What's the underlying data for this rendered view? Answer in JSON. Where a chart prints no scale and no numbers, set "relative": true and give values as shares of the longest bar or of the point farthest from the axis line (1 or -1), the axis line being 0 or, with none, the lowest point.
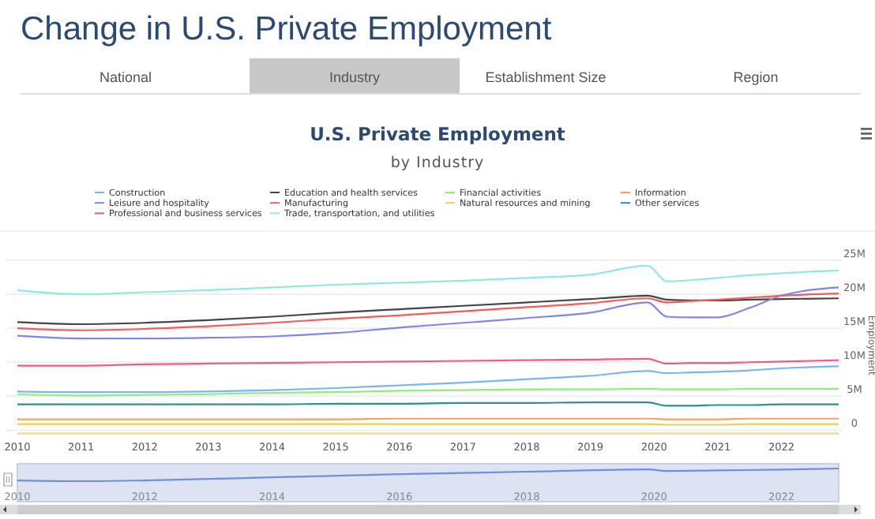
{
  "chart_data": [
    {
      "type": "other",
      "title": "Change in U.S. Private Employment",
      "annotations": [
        "National",
        "Industry",
        "Establishment Size",
        "Region"
      ]
    },
    {
      "type": "line",
      "title": "U.S. Private Employment",
      "subtitle": "by Industry",
      "ylabel": "Employment",
      "legend": "top",
      "grid": "y",
      "xlim": [
        2010,
        2022.9
      ],
      "xticks": [
        2010,
        2011,
        2012,
        2013,
        2014,
        2015,
        2016,
        2017,
        2018,
        2019,
        2020,
        2021,
        2022
      ],
      "ylim": [
        0,
        25000000
      ],
      "yticks": [
        {
          "value": 0,
          "label": "0"
        },
        {
          "value": 5000000,
          "label": "5M"
        },
        {
          "value": 10000000,
          "label": "10M"
        },
        {
          "value": 15000000,
          "label": "15M"
        },
        {
          "value": 20000000,
          "label": "20M"
        },
        {
          "value": 25000000,
          "label": "25M"
        }
      ],
      "x": [
        2010,
        2011,
        2012,
        2013,
        2014,
        2015,
        2016,
        2017,
        2018,
        2019,
        2019.9,
        2020.2,
        2020.6,
        2021,
        2021.5,
        2022,
        2022.9
      ],
      "series": [
        {
          "name": "Construction",
          "color": "#7cb5ec",
          "values": [
            5700000,
            5600000,
            5600000,
            5700000,
            5900000,
            6200000,
            6600000,
            7000000,
            7500000,
            8000000,
            8700000,
            8400000,
            8500000,
            8600000,
            8800000,
            9100000,
            9400000
          ]
        },
        {
          "name": "Education and health services",
          "color": "#434348",
          "values": [
            15900000,
            15600000,
            15800000,
            16200000,
            16700000,
            17300000,
            17800000,
            18300000,
            18800000,
            19300000,
            19800000,
            19200000,
            19100000,
            19100000,
            19200000,
            19300000,
            19400000
          ]
        },
        {
          "name": "Financial activities",
          "color": "#90ed7d",
          "values": [
            5300000,
            5100000,
            5200000,
            5300000,
            5500000,
            5600000,
            5800000,
            5900000,
            6000000,
            6000000,
            6100000,
            6000000,
            6000000,
            6000000,
            6100000,
            6100000,
            6100000
          ]
        },
        {
          "name": "Information",
          "color": "#f7a35c",
          "values": [
            1600000,
            1600000,
            1600000,
            1600000,
            1600000,
            1600000,
            1700000,
            1700000,
            1700000,
            1700000,
            1700000,
            1600000,
            1600000,
            1600000,
            1700000,
            1700000,
            1700000
          ]
        },
        {
          "name": "Leisure and hospitality",
          "color": "#8085e9",
          "values": [
            13900000,
            13500000,
            13500000,
            13600000,
            13800000,
            14300000,
            15100000,
            15800000,
            16500000,
            17300000,
            18800000,
            16700000,
            16600000,
            16600000,
            18000000,
            19800000,
            21000000
          ]
        },
        {
          "name": "Manufacturing",
          "color": "#f15c80",
          "values": [
            9500000,
            9500000,
            9700000,
            9800000,
            9900000,
            10000000,
            10100000,
            10200000,
            10300000,
            10400000,
            10500000,
            9800000,
            9900000,
            9900000,
            10000000,
            10100000,
            10300000
          ]
        },
        {
          "name": "Natural resources and mining",
          "color": "#e4d354",
          "values": [
            900000,
            900000,
            900000,
            900000,
            900000,
            900000,
            900000,
            900000,
            900000,
            900000,
            900000,
            800000,
            800000,
            800000,
            900000,
            900000,
            900000
          ]
        },
        {
          "name": "Other services",
          "color": "#2b908f",
          "values": [
            3800000,
            3800000,
            3800000,
            3800000,
            3800000,
            3900000,
            3900000,
            4000000,
            4000000,
            4100000,
            4100000,
            3600000,
            3600000,
            3700000,
            3700000,
            3800000,
            3800000
          ]
        },
        {
          "name": "Professional and business services",
          "color": "#f45b5b",
          "values": [
            15000000,
            14700000,
            14900000,
            15300000,
            15800000,
            16400000,
            16900000,
            17500000,
            18100000,
            18700000,
            19400000,
            18800000,
            19000000,
            19200000,
            19500000,
            19800000,
            20100000
          ]
        },
        {
          "name": "Trade, transportation, and utilities",
          "color": "#91e8e1",
          "values": [
            20600000,
            20000000,
            20300000,
            20600000,
            21000000,
            21400000,
            21700000,
            22000000,
            22400000,
            22900000,
            24200000,
            21900000,
            22100000,
            22400000,
            22800000,
            23100000,
            23500000
          ]
        }
      ]
    },
    {
      "type": "line",
      "relative": true,
      "tick_labels": "x",
      "xlim": [
        2010,
        2022.9
      ],
      "xticks": [
        2010,
        2012,
        2014,
        2016,
        2018,
        2020,
        2022
      ],
      "series": [
        {
          "color": "#6f8fd8",
          "x": [
            2010,
            2011,
            2012,
            2014,
            2016,
            2018,
            2019.9,
            2020.2,
            2021,
            2022,
            2022.9
          ],
          "values": [
            0.06,
            0,
            0.06,
            0.3,
            0.55,
            0.75,
            0.93,
            0.8,
            0.85,
            0.92,
            1
          ]
        }
      ]
    }
  ]
}
